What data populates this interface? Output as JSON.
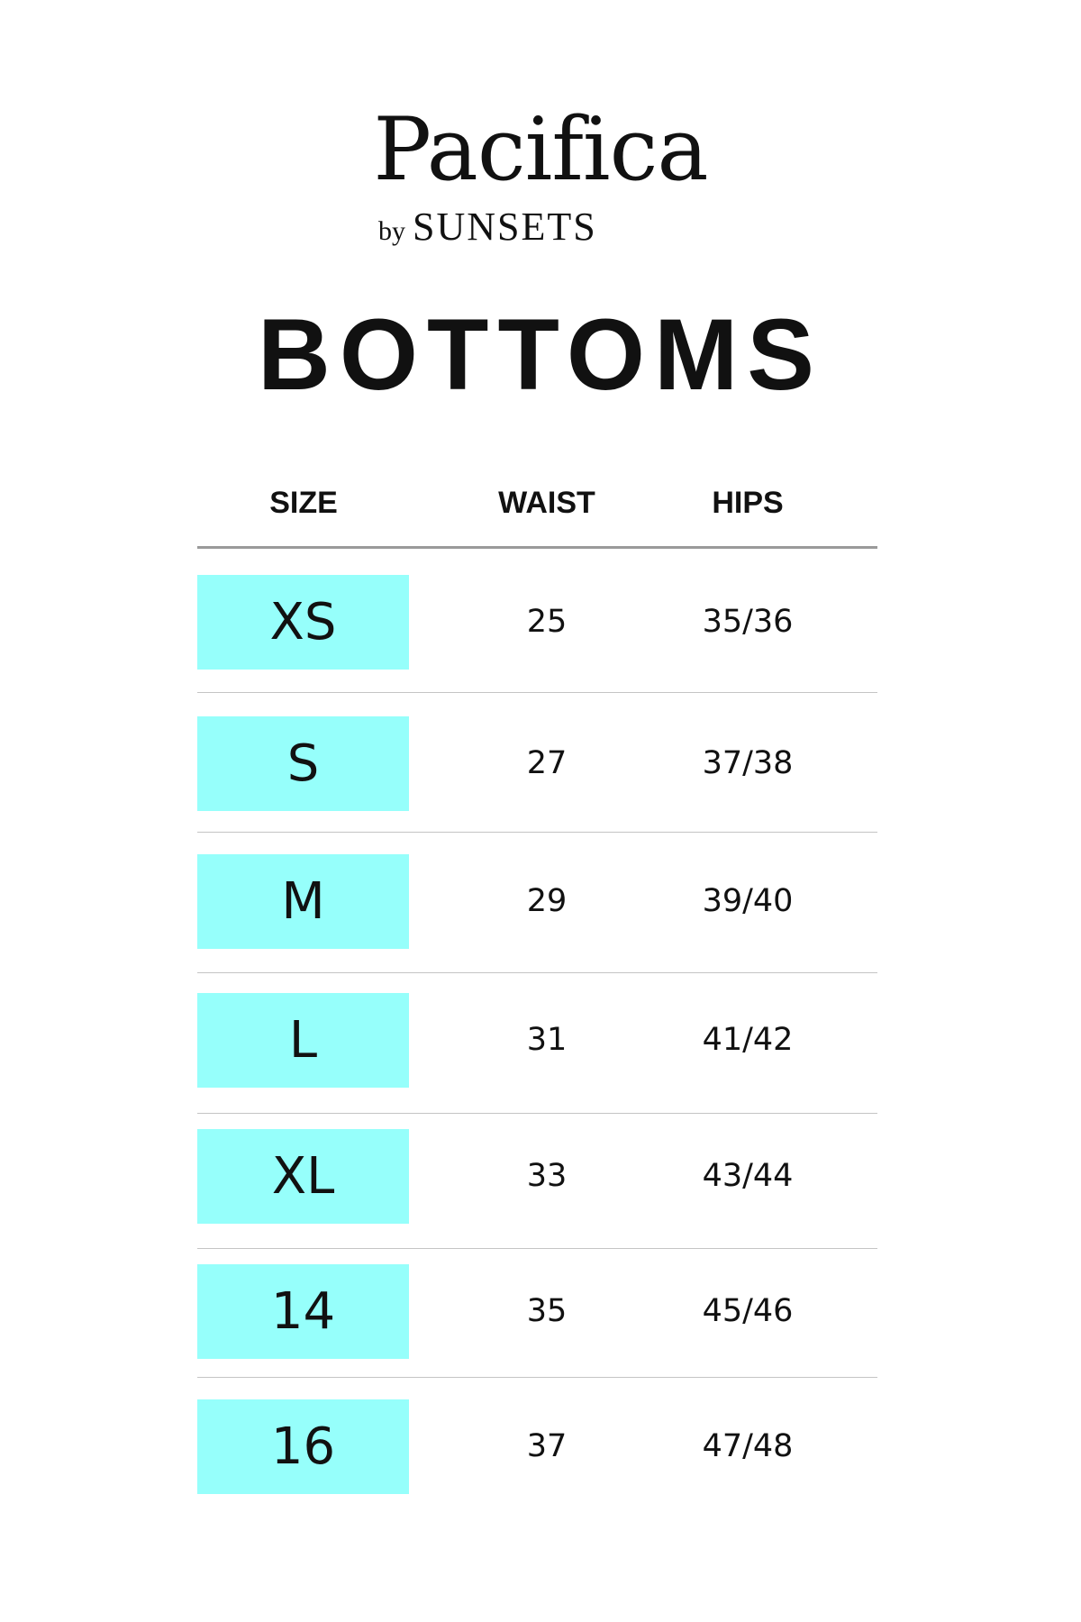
{
  "brand": {
    "name": "Pacifica",
    "by": "by",
    "sub": "SUNSETS"
  },
  "title": "BOTTOMS",
  "colors": {
    "size_highlight": "#96FFFB",
    "text": "#111111",
    "header_rule": "#9A9A9A",
    "row_rule": "#C4C4C4"
  },
  "table": {
    "headers": [
      "SIZE",
      "WAIST",
      "HIPS"
    ],
    "rows": [
      {
        "size": "XS",
        "waist": "25",
        "hips": "35/36"
      },
      {
        "size": "S",
        "waist": "27",
        "hips": "37/38"
      },
      {
        "size": "M",
        "waist": "29",
        "hips": "39/40"
      },
      {
        "size": "L",
        "waist": "31",
        "hips": "41/42"
      },
      {
        "size": "XL",
        "waist": "33",
        "hips": "43/44"
      },
      {
        "size": "14",
        "waist": "35",
        "hips": "45/46"
      },
      {
        "size": "16",
        "waist": "37",
        "hips": "47/48"
      }
    ]
  }
}
